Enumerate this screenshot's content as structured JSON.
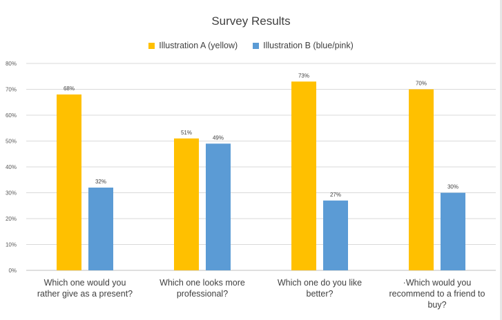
{
  "chart_data": {
    "type": "bar",
    "title": "Survey Results",
    "categories": [
      "Which one would you rather give as a present?",
      "Which one looks more professional?",
      "Which one do you like better?",
      "·Which would you recommend to a friend to buy?"
    ],
    "category_lines": [
      [
        "Which one would you",
        "rather give as a present?"
      ],
      [
        "Which one looks more",
        "professional?"
      ],
      [
        "Which one do you like",
        "better?"
      ],
      [
        "·Which would you",
        "recommend to a friend to",
        "buy?"
      ]
    ],
    "series": [
      {
        "name": "Illustration A (yellow)",
        "color": "#FFC000",
        "values": [
          68,
          51,
          73,
          70
        ],
        "labels": [
          "68%",
          "51%",
          "73%",
          "70%"
        ]
      },
      {
        "name": "Illustration B (blue/pink)",
        "color": "#5B9BD5",
        "values": [
          32,
          49,
          27,
          30
        ],
        "labels": [
          "32%",
          "49%",
          "27%",
          "30%"
        ]
      }
    ],
    "ylim": [
      0,
      80
    ],
    "yticks": [
      0,
      10,
      20,
      30,
      40,
      50,
      60,
      70,
      80
    ],
    "ytick_labels": [
      "0%",
      "10%",
      "20%",
      "30%",
      "40%",
      "50%",
      "60%",
      "70%",
      "80%"
    ],
    "xlabel": "",
    "ylabel": "",
    "grid": true,
    "legend_position": "top"
  }
}
